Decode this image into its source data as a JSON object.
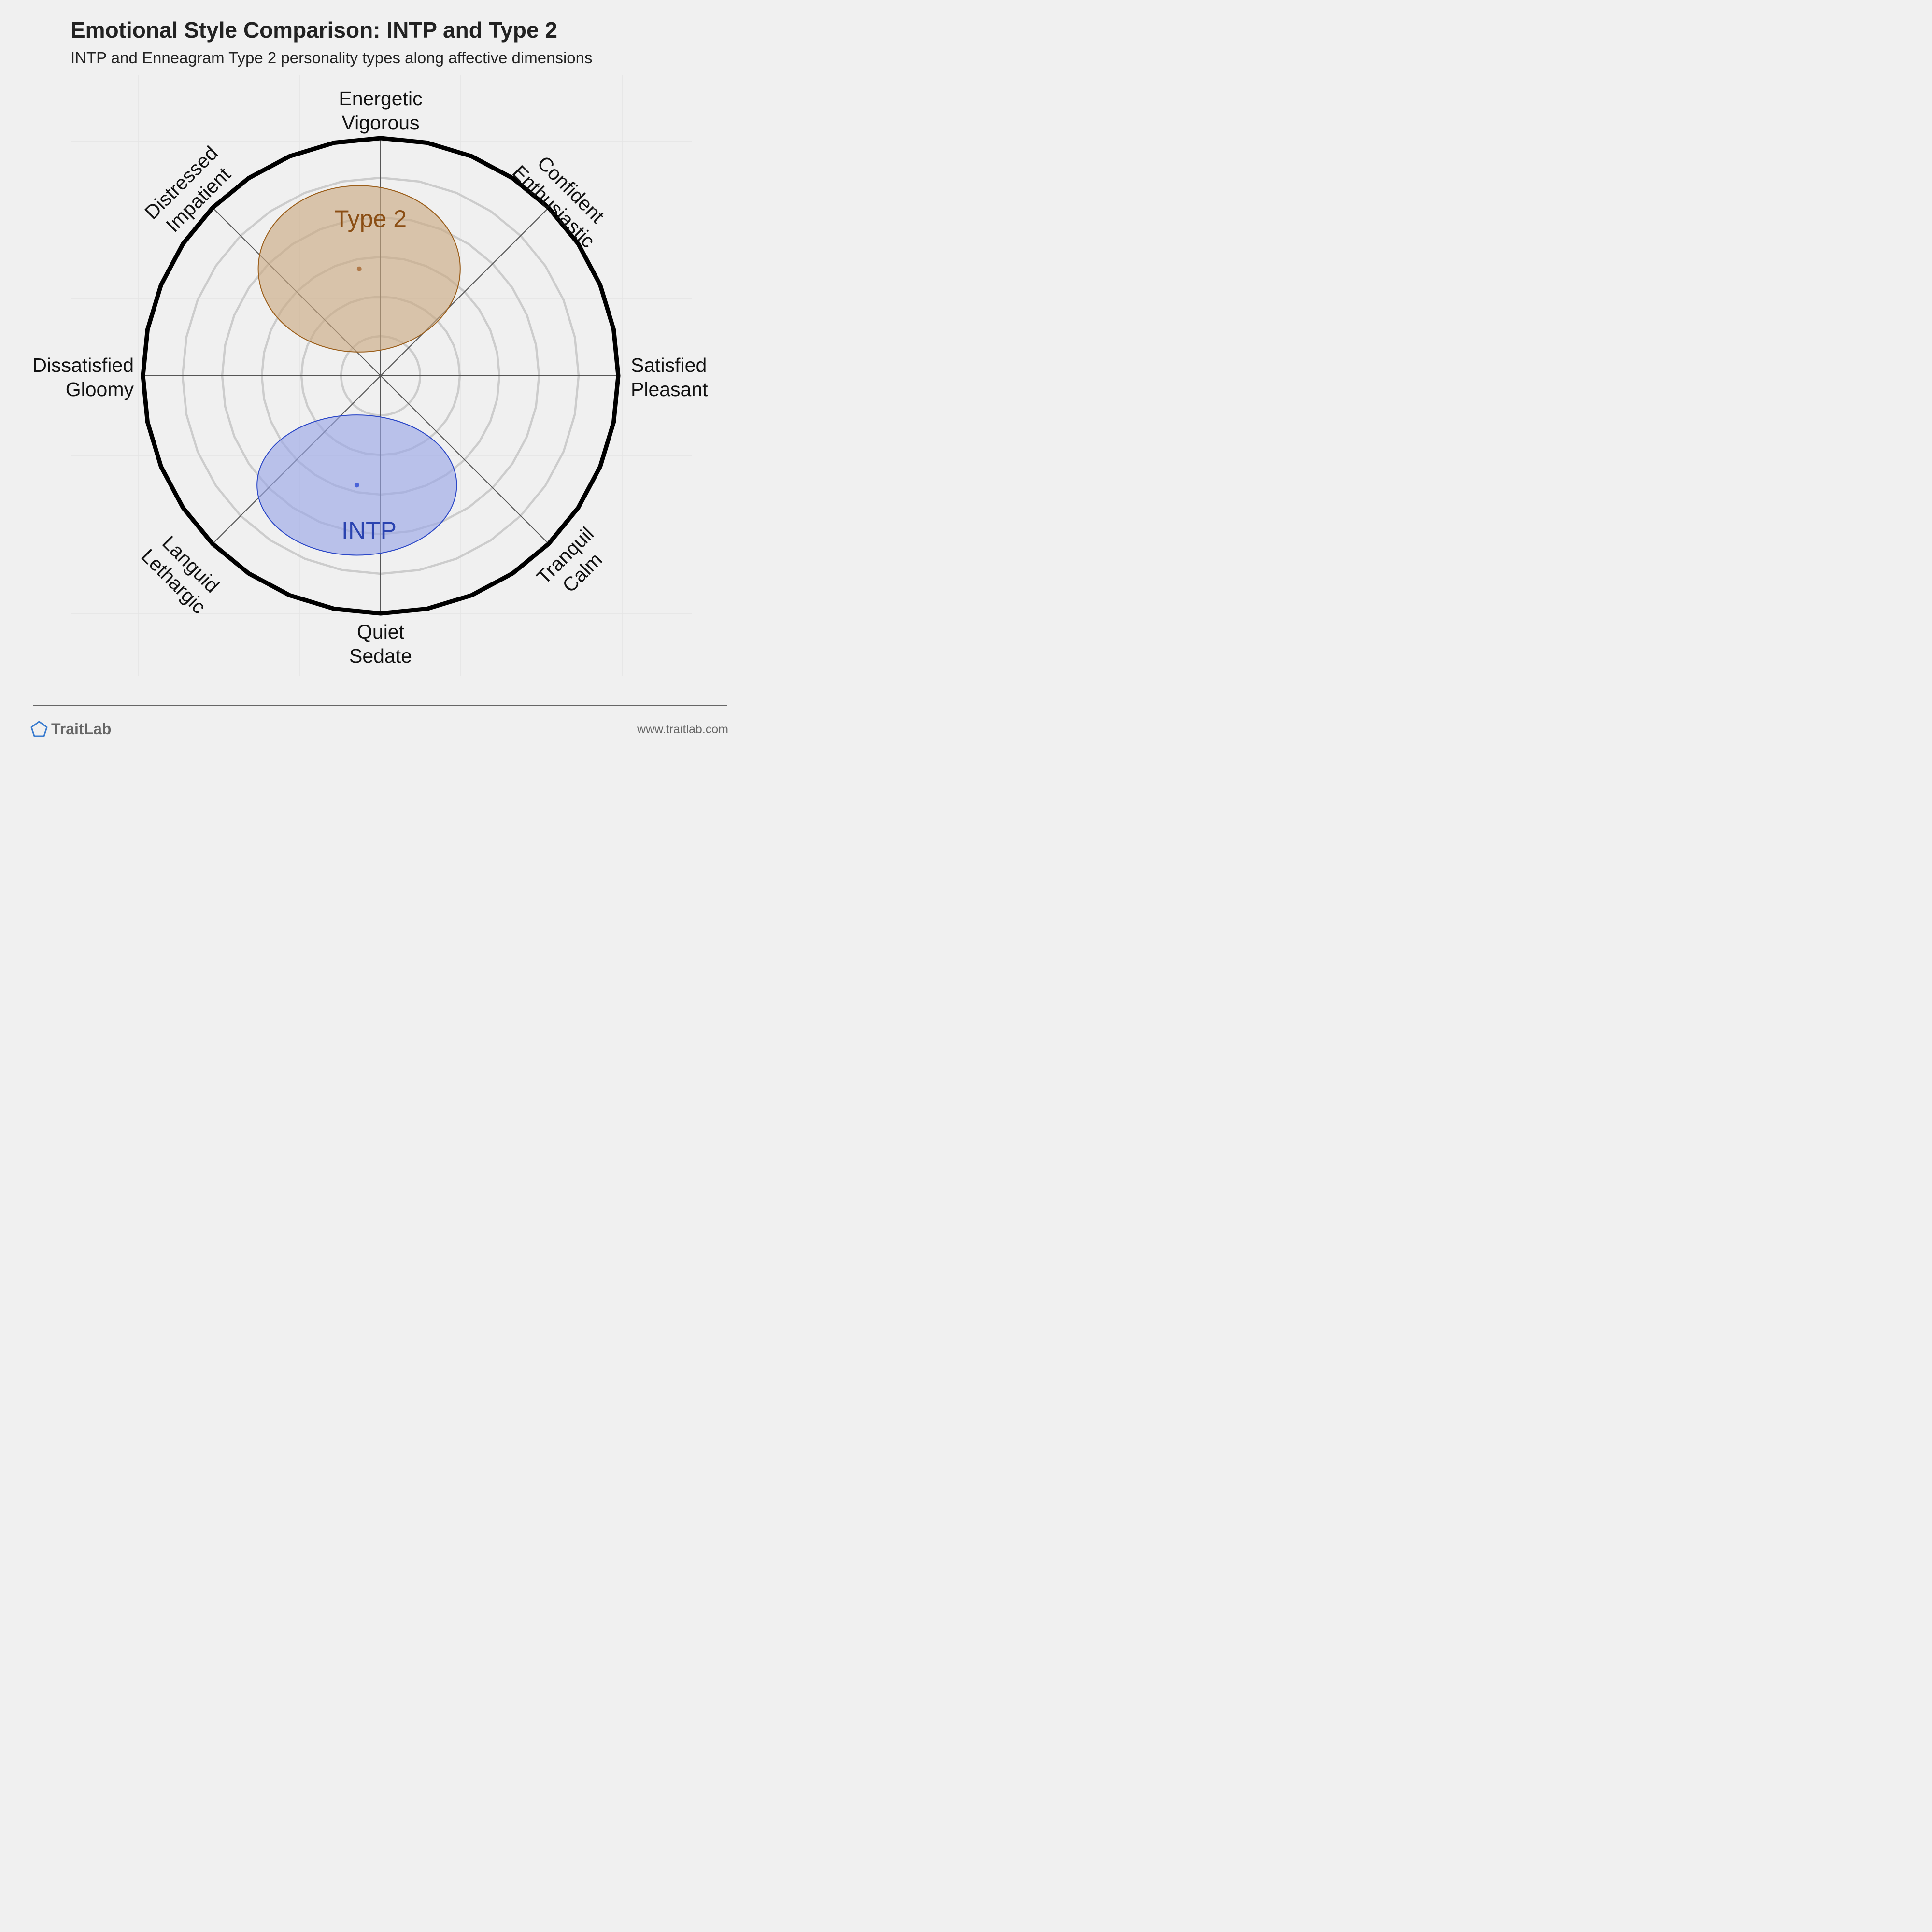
{
  "title": "Emotional Style Comparison: INTP and Type 2",
  "subtitle": "INTP and Enneagram Type 2 personality types along affective dimensions",
  "chart_data": {
    "type": "scatter",
    "axes": [
      {
        "id": "energetic",
        "angle_deg": 90,
        "lines": [
          "Energetic",
          "Vigorous"
        ]
      },
      {
        "id": "confident",
        "angle_deg": 45,
        "lines": [
          "Confident",
          "Enthusiastic"
        ]
      },
      {
        "id": "satisfied",
        "angle_deg": 0,
        "lines": [
          "Satisfied",
          "Pleasant"
        ]
      },
      {
        "id": "tranquil",
        "angle_deg": -45,
        "lines": [
          "Tranquil",
          "Calm"
        ]
      },
      {
        "id": "quiet",
        "angle_deg": -90,
        "lines": [
          "Quiet",
          "Sedate"
        ]
      },
      {
        "id": "languid",
        "angle_deg": -135,
        "lines": [
          "Languid",
          "Lethargic"
        ]
      },
      {
        "id": "dissatisfied",
        "angle_deg": 180,
        "lines": [
          "Dissatisfied",
          "Gloomy"
        ]
      },
      {
        "id": "distressed",
        "angle_deg": 135,
        "lines": [
          "Distressed",
          "Impatient"
        ]
      }
    ],
    "x_range": [
      -1,
      1
    ],
    "y_range": [
      -1,
      1
    ],
    "ring_count": 6,
    "series": [
      {
        "name": "Type 2",
        "center": [
          -0.09,
          0.45
        ],
        "spread": [
          0.85,
          0.7
        ],
        "fill": "#c9a87f",
        "stroke": "#9b5e1a",
        "label_color": "#8b4e14",
        "dot_color": "#b07a4a"
      },
      {
        "name": "INTP",
        "center": [
          -0.1,
          -0.46
        ],
        "spread": [
          0.84,
          0.59
        ],
        "fill": "#97a5e6",
        "stroke": "#2b47c7",
        "label_color": "#2a43b0",
        "dot_color": "#4a63d8"
      }
    ]
  },
  "footer": {
    "brand": "TraitLab",
    "url": "www.traitlab.com"
  },
  "colors": {
    "background": "#f0f0f0",
    "ring": "#cccccc",
    "outer_ring": "#000000",
    "axis_line": "#555555",
    "brand_icon": "#3a7ccf"
  }
}
